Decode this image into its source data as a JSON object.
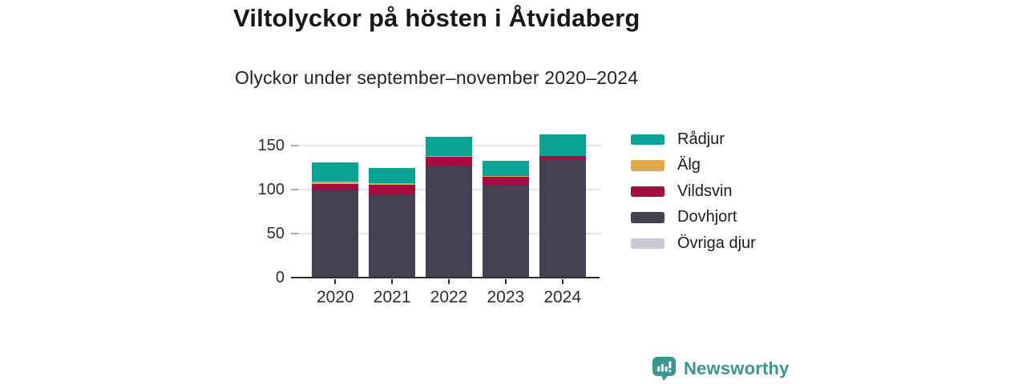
{
  "header": {
    "title": "Viltolyckor på hösten i Åtvidaberg",
    "subtitle": "Olyckor under september–november 2020–2024"
  },
  "chart_data": {
    "type": "bar",
    "stacked": true,
    "title": "Viltolyckor på hösten i Åtvidaberg",
    "subtitle": "Olyckor under september–november 2020–2024",
    "categories": [
      "2020",
      "2021",
      "2022",
      "2023",
      "2024"
    ],
    "series": [
      {
        "name": "Rådjur",
        "color": "#0aa295",
        "values": [
          22,
          17,
          21,
          17,
          24
        ]
      },
      {
        "name": "Älg",
        "color": "#dfa94f",
        "values": [
          2,
          2,
          1,
          1,
          0
        ]
      },
      {
        "name": "Vildsvin",
        "color": "#a40c42",
        "values": [
          8,
          11,
          11,
          9,
          5
        ]
      },
      {
        "name": "Dovhjort",
        "color": "#454152",
        "values": [
          99,
          95,
          127,
          106,
          134
        ]
      },
      {
        "name": "Övriga djur",
        "color": "#c7cad3",
        "values": [
          0,
          0,
          0,
          0,
          0
        ]
      }
    ],
    "totals": [
      131,
      125,
      160,
      133,
      163
    ],
    "xlabel": "",
    "ylabel": "",
    "ylim": [
      0,
      165
    ],
    "yticks": [
      0,
      50,
      100,
      150
    ],
    "grid": true,
    "legend_position": "right"
  },
  "colors": {
    "grid": "#e4e4e7",
    "axis": "#2e2e36",
    "brand_teal": "#3c968f"
  },
  "branding": {
    "logo_text": "Newsworthy",
    "logo_icon": "bar-chart-speech-bubble-icon"
  }
}
